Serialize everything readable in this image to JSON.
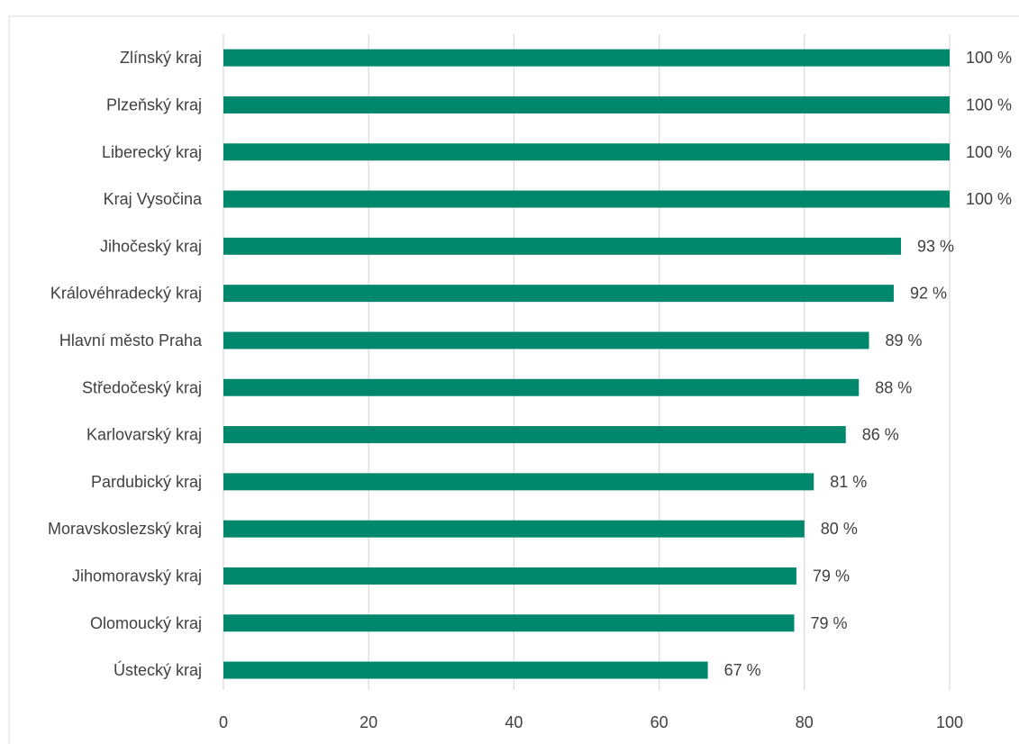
{
  "colors": {
    "bar": "#00876C",
    "grid": "#D9D9D9",
    "text": "#404040",
    "frame": "#D9D9D9"
  },
  "chart_data": {
    "type": "bar",
    "orientation": "horizontal",
    "title": "",
    "xlabel": "",
    "ylabel": "",
    "xlim": [
      0,
      100
    ],
    "x_ticks": [
      "0",
      "20",
      "40",
      "60",
      "80",
      "100"
    ],
    "grid": true,
    "legend": "none",
    "categories": [
      "Zlínský kraj",
      "Plzeňský kraj",
      "Liberecký kraj",
      "Kraj Vysočina",
      "Jihočeský kraj",
      "Královéhradecký kraj",
      "Hlavní město Praha",
      "Středočeský kraj",
      "Karlovarský kraj",
      "Pardubický kraj",
      "Moravskoslezský kraj",
      "Jihomoravský kraj",
      "Olomoucký kraj",
      "Ústecký kraj"
    ],
    "values": [
      100,
      100,
      100,
      100,
      93.3,
      92.3,
      88.9,
      87.5,
      85.7,
      81.3,
      80.0,
      78.9,
      78.6,
      66.7
    ],
    "data_labels": [
      "100 %",
      "100 %",
      "100 %",
      "100 %",
      "93 %",
      "92 %",
      "89 %",
      "88 %",
      "86 %",
      "81 %",
      "80 %",
      "79 %",
      "79 %",
      "67 %"
    ]
  }
}
